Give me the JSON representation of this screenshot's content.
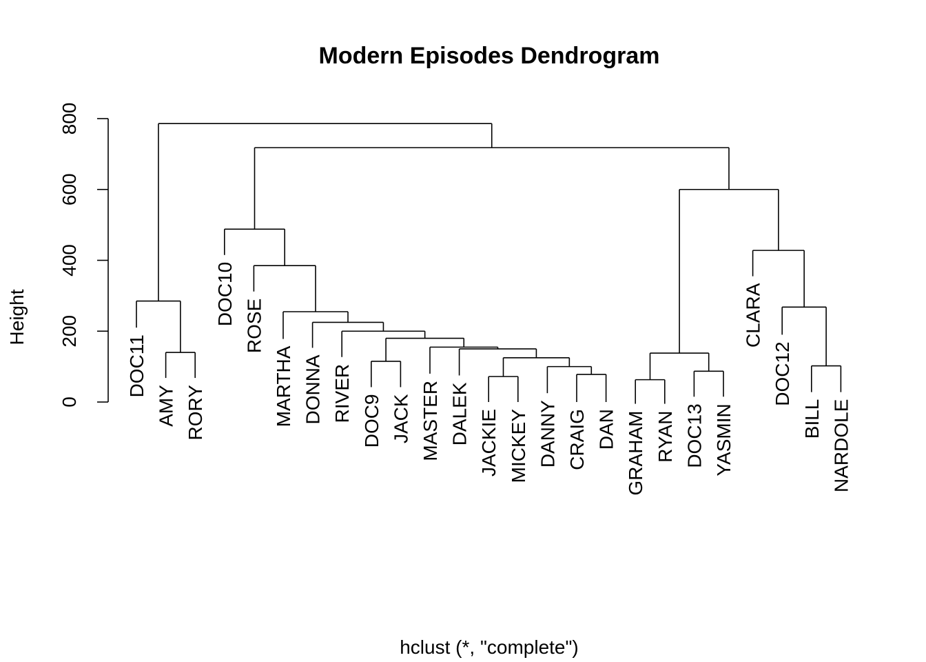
{
  "chart_data": {
    "type": "dendrogram",
    "title": "Modern Episodes Dendrogram",
    "xlabel": "hclust (*, \"complete\")",
    "ylabel": "Height",
    "ylim": [
      0,
      800
    ],
    "yticks": [
      0,
      200,
      400,
      600,
      800
    ],
    "leaves": [
      "DOC11",
      "AMY",
      "RORY",
      "DOC10",
      "ROSE",
      "MARTHA",
      "DONNA",
      "RIVER",
      "DOC9",
      "JACK",
      "MASTER",
      "DALEK",
      "JACKIE",
      "MICKEY",
      "DANNY",
      "CRAIG",
      "DAN",
      "GRAHAM",
      "RYAN",
      "DOC13",
      "YASMIN",
      "CLARA",
      "DOC12",
      "BILL",
      "NARDOLE"
    ],
    "merges": [
      {
        "left": "JACKIE",
        "right": "MICKEY",
        "height": 72
      },
      {
        "left": "CRAIG",
        "right": "DAN",
        "height": 78
      },
      {
        "left": "DANNY",
        "right": "CRAIG+DAN",
        "height": 100
      },
      {
        "left": "JACKIE+MICKEY",
        "right": "DANNY+CRAIG+DAN",
        "height": 125
      },
      {
        "left": "DALEK",
        "right": "JACKIE+MICKEY+DANNY+CRAIG+DAN",
        "height": 150
      },
      {
        "left": "MASTER",
        "right": "DALEK+JACKIE+MICKEY+DANNY+CRAIG+DAN",
        "height": 155
      },
      {
        "left": "DOC9",
        "right": "JACK",
        "height": 115
      },
      {
        "left": "DOC9+JACK",
        "right": "MASTER+DALEK+JACKIE+MICKEY+DANNY+CRAIG+DAN",
        "height": 180
      },
      {
        "left": "RIVER",
        "right": "DOC9+JACK+MASTER+DALEK+JACKIE+MICKEY+DANNY+CRAIG+DAN",
        "height": 200
      },
      {
        "left": "DONNA",
        "right": "RIVER+DOC9+JACK+MASTER+DALEK+JACKIE+MICKEY+DANNY+CRAIG+DAN",
        "height": 225
      },
      {
        "left": "MARTHA",
        "right": "DONNA+RIVER+DOC9+JACK+MASTER+DALEK+JACKIE+MICKEY+DANNY+CRAIG+DAN",
        "height": 255
      },
      {
        "left": "ROSE",
        "right": "MARTHA+DONNA+RIVER+DOC9+JACK+MASTER+DALEK+JACKIE+MICKEY+DANNY+CRAIG+DAN",
        "height": 385
      },
      {
        "left": "DOC10",
        "right": "ROSE+MARTHA+DONNA+RIVER+DOC9+JACK+MASTER+DALEK+JACKIE+MICKEY+DANNY+CRAIG+DAN",
        "height": 488
      },
      {
        "left": "AMY",
        "right": "RORY",
        "height": 140
      },
      {
        "left": "DOC11",
        "right": "AMY+RORY",
        "height": 285
      },
      {
        "left": "GRAHAM",
        "right": "RYAN",
        "height": 63
      },
      {
        "left": "DOC13",
        "right": "YASMIN",
        "height": 87
      },
      {
        "left": "GRAHAM+RYAN",
        "right": "DOC13+YASMIN",
        "height": 138
      },
      {
        "left": "BILL",
        "right": "NARDOLE",
        "height": 102
      },
      {
        "left": "DOC12",
        "right": "BILL+NARDOLE",
        "height": 268
      },
      {
        "left": "CLARA",
        "right": "DOC12+BILL+NARDOLE",
        "height": 428
      },
      {
        "left": "GRAHAM+RYAN+DOC13+YASMIN",
        "right": "CLARA+DOC12+BILL+NARDOLE",
        "height": 600
      },
      {
        "left": "DOC10+ROSE+MARTHA+DONNA+RIVER+DOC9+JACK+MASTER+DALEK+JACKIE+MICKEY+DANNY+CRAIG+DAN",
        "right": "GRAHAM+RYAN+DOC13+YASMIN+CLARA+DOC12+BILL+NARDOLE",
        "height": 718
      },
      {
        "left": "DOC11+AMY+RORY",
        "right": "rest",
        "height": 786
      }
    ],
    "leaf_label_heights": {
      "DOC11": 210,
      "AMY": 68,
      "RORY": 68,
      "DOC10": 415,
      "ROSE": 312,
      "MARTHA": 178,
      "DONNA": 153,
      "RIVER": 127,
      "DOC9": 42,
      "JACK": 42,
      "MASTER": 80,
      "DALEK": 75,
      "JACKIE": 0,
      "MICKEY": 0,
      "DANNY": 25,
      "CRAIG": 0,
      "DAN": 0,
      "GRAHAM": -5,
      "RYAN": -5,
      "DOC13": 15,
      "YASMIN": 15,
      "CLARA": 355,
      "DOC12": 190,
      "BILL": 28,
      "NARDOLE": 28
    }
  }
}
